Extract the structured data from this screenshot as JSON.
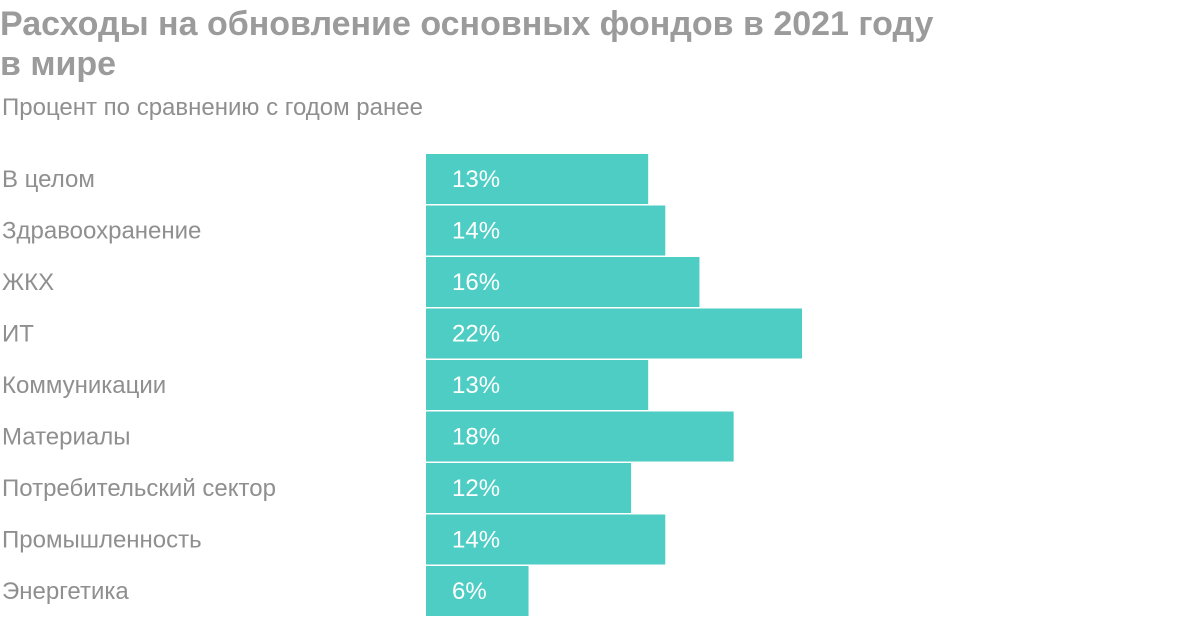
{
  "chart_data": {
    "type": "bar",
    "orientation": "horizontal",
    "title": "Расходы на обновление основных фондов в 2021 году в мире",
    "title_lines": [
      "Расходы на обновление основных фондов в 2021 году",
      "в мире"
    ],
    "subtitle": "Процент по сравнению с годом ранее",
    "categories": [
      "В целом",
      "Здравоохранение",
      "ЖКХ",
      "ИТ",
      "Коммуникации",
      "Материалы",
      "Потребительский сектор",
      "Промышленность",
      "Энергетика"
    ],
    "values": [
      13,
      14,
      16,
      22,
      13,
      18,
      12,
      14,
      6
    ],
    "value_labels": [
      "13%",
      "14%",
      "16%",
      "22%",
      "13%",
      "18%",
      "12%",
      "14%",
      "6%"
    ],
    "unit": "%",
    "xlim": [
      0,
      22
    ],
    "grid": false,
    "bar_color": "#4ecdc4",
    "label_color": "#ffffff",
    "text_color": "#8f8f8f"
  }
}
